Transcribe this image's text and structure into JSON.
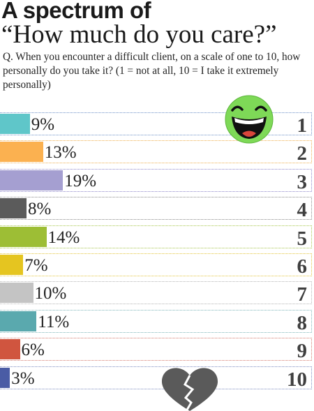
{
  "header": {
    "title": "A spectrum of",
    "subtitle": "“How much do you care?”",
    "question": "Q. When you encounter a difficult client, on a scale of one to 10, how personally do you take it? (1 = not at all, 10 = I take it extremely personally)"
  },
  "icons": {
    "top": "laughing-smiley-icon",
    "bottom": "broken-heart-icon"
  },
  "chart_data": {
    "type": "bar",
    "orientation": "horizontal",
    "categories": [
      "1",
      "2",
      "3",
      "4",
      "5",
      "6",
      "7",
      "8",
      "9",
      "10"
    ],
    "values": [
      9,
      13,
      19,
      8,
      14,
      7,
      10,
      11,
      6,
      3
    ],
    "labels": [
      "9%",
      "13%",
      "19%",
      "8%",
      "14%",
      "7%",
      "10%",
      "11%",
      "6%",
      "3%"
    ],
    "bar_colors": [
      "#5fc6c9",
      "#fbb150",
      "#a59fd1",
      "#5b5b5b",
      "#9dbe35",
      "#e5c520",
      "#c4c4c4",
      "#5aa9ae",
      "#d0553f",
      "#4a5ca5"
    ],
    "row_border_colors": [
      "#6c8fc7",
      "#efae4c",
      "#8d85c9",
      "#8a8a8a",
      "#a8c74c",
      "#e3c53b",
      "#b5b5b5",
      "#7db5b8",
      "#d4786b",
      "#7c8cc0"
    ],
    "xlim": [
      0,
      100
    ]
  }
}
